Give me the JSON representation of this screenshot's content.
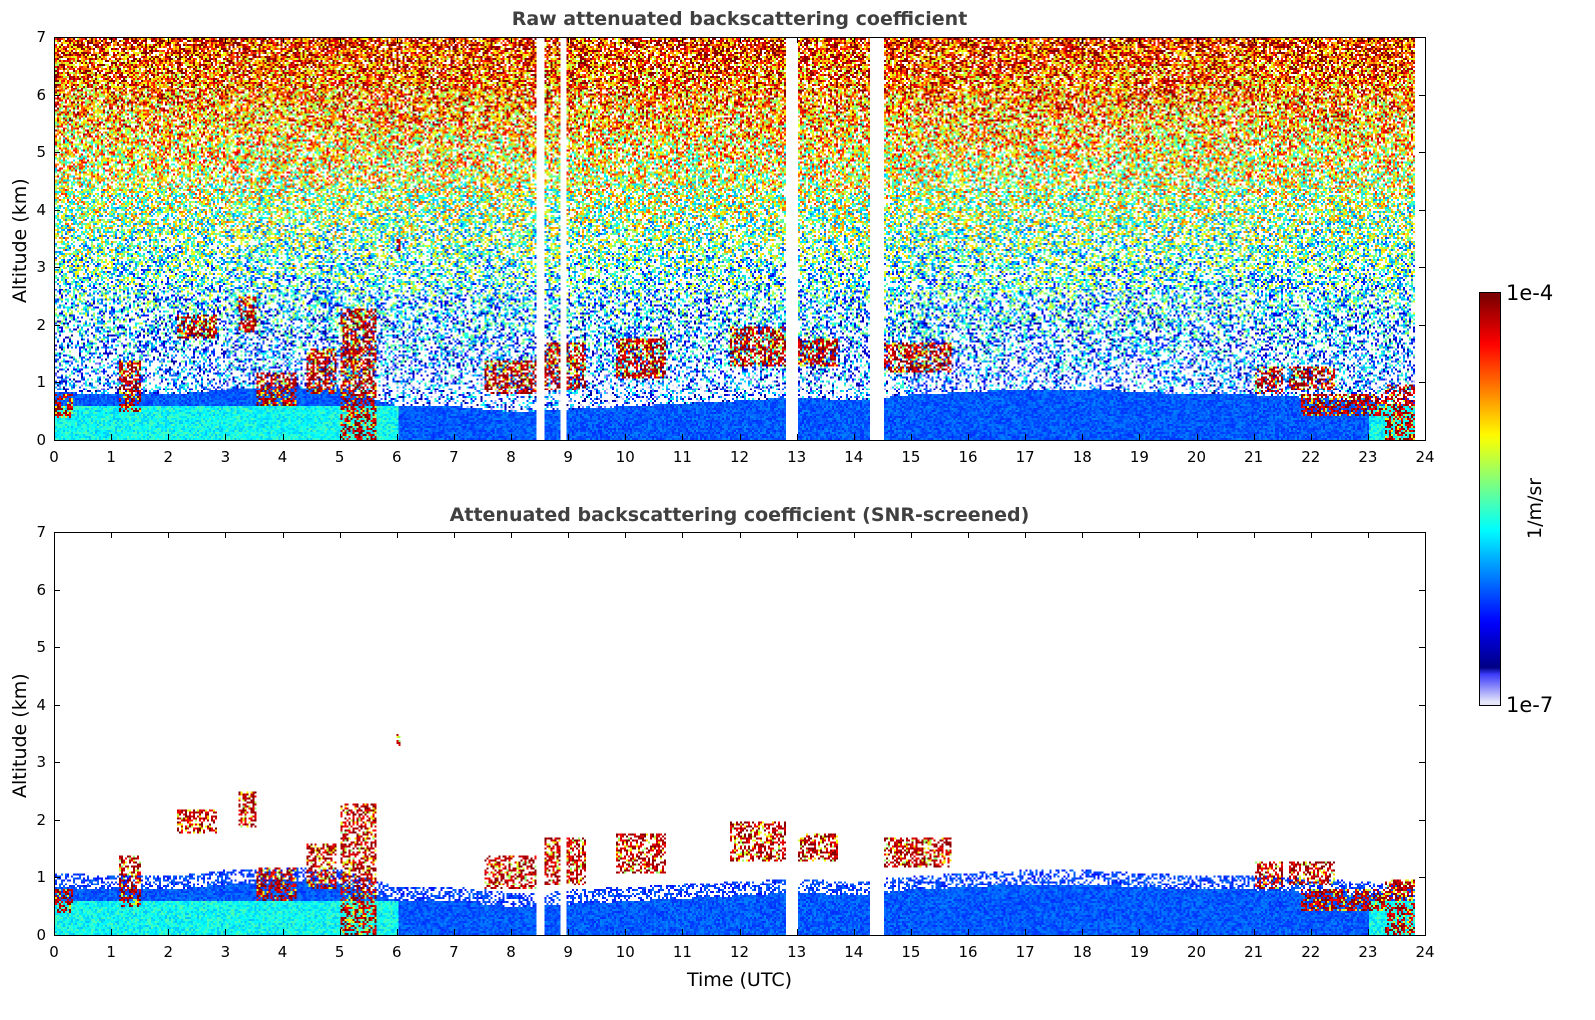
{
  "chart_data": [
    {
      "type": "heatmap",
      "title": "Raw attenuated backscattering coefficient",
      "xlabel": "",
      "ylabel": "Altitude (km)",
      "xlim": [
        0,
        24
      ],
      "ylim": [
        0,
        7
      ],
      "xticks": [
        "0",
        "1",
        "2",
        "3",
        "4",
        "5",
        "6",
        "7",
        "8",
        "9",
        "10",
        "11",
        "12",
        "13",
        "14",
        "15",
        "16",
        "17",
        "18",
        "19",
        "20",
        "21",
        "22",
        "23",
        "24"
      ],
      "yticks": [
        "0",
        "1",
        "2",
        "3",
        "4",
        "5",
        "6",
        "7"
      ],
      "screened": false
    },
    {
      "type": "heatmap",
      "title": "Attenuated backscattering coefficient (SNR-screened)",
      "xlabel": "Time (UTC)",
      "ylabel": "Altitude (km)",
      "xlim": [
        0,
        24
      ],
      "ylim": [
        0,
        7
      ],
      "xticks": [
        "0",
        "1",
        "2",
        "3",
        "4",
        "5",
        "6",
        "7",
        "8",
        "9",
        "10",
        "11",
        "12",
        "13",
        "14",
        "15",
        "16",
        "17",
        "18",
        "19",
        "20",
        "21",
        "22",
        "23",
        "24"
      ],
      "yticks": [
        "0",
        "1",
        "2",
        "3",
        "4",
        "5",
        "6",
        "7"
      ],
      "screened": true
    }
  ],
  "colorbar": {
    "min_label": "1e-7",
    "max_label": "1e-4",
    "label": "1/m/sr",
    "log_min": -7,
    "log_max": -4
  },
  "boundary_layer_km": [
    [
      0,
      0.85
    ],
    [
      1,
      0.8
    ],
    [
      2,
      0.8
    ],
    [
      3,
      0.9
    ],
    [
      4,
      0.95
    ],
    [
      5,
      0.9
    ],
    [
      6,
      0.6
    ],
    [
      7,
      0.6
    ],
    [
      8,
      0.5
    ],
    [
      9,
      0.55
    ],
    [
      10,
      0.6
    ],
    [
      11,
      0.65
    ],
    [
      12,
      0.7
    ],
    [
      13,
      0.75
    ],
    [
      14,
      0.7
    ],
    [
      15,
      0.8
    ],
    [
      16,
      0.85
    ],
    [
      17,
      0.9
    ],
    [
      18,
      0.9
    ],
    [
      19,
      0.85
    ],
    [
      20,
      0.8
    ],
    [
      21,
      0.8
    ],
    [
      22,
      0.75
    ],
    [
      23,
      0.7
    ],
    [
      23.8,
      0.6
    ]
  ],
  "cloud_layers": [
    {
      "t": [
        0,
        0.3
      ],
      "z": [
        0.4,
        0.8
      ]
    },
    {
      "t": [
        1.1,
        1.5
      ],
      "z": [
        0.5,
        1.4
      ]
    },
    {
      "t": [
        2.1,
        2.8
      ],
      "z": [
        1.8,
        2.2
      ]
    },
    {
      "t": [
        3.2,
        3.5
      ],
      "z": [
        1.9,
        2.5
      ]
    },
    {
      "t": [
        3.5,
        4.2
      ],
      "z": [
        0.6,
        1.2
      ]
    },
    {
      "t": [
        4.4,
        4.9
      ],
      "z": [
        0.8,
        1.6
      ]
    },
    {
      "t": [
        5.0,
        5.6
      ],
      "z": [
        0,
        2.3
      ]
    },
    {
      "t": [
        5.95,
        6.05
      ],
      "z": [
        3.3,
        3.5
      ]
    },
    {
      "t": [
        7.5,
        8.4
      ],
      "z": [
        0.8,
        1.4
      ]
    },
    {
      "t": [
        8.5,
        9.3
      ],
      "z": [
        0.9,
        1.7
      ]
    },
    {
      "t": [
        9.8,
        10.7
      ],
      "z": [
        1.1,
        1.8
      ]
    },
    {
      "t": [
        11.8,
        12.9
      ],
      "z": [
        1.3,
        2.0
      ]
    },
    {
      "t": [
        13.0,
        13.7
      ],
      "z": [
        1.3,
        1.8
      ]
    },
    {
      "t": [
        14.5,
        15.7
      ],
      "z": [
        1.2,
        1.7
      ]
    },
    {
      "t": [
        21.0,
        21.5
      ],
      "z": [
        0.8,
        1.3
      ]
    },
    {
      "t": [
        21.6,
        22.4
      ],
      "z": [
        0.9,
        1.3
      ]
    },
    {
      "t": [
        21.8,
        23.4
      ],
      "z": [
        0.45,
        0.8
      ]
    },
    {
      "t": [
        23.3,
        23.8
      ],
      "z": [
        0,
        1.0
      ]
    }
  ],
  "data_gaps_utc": [
    [
      8.4,
      8.55
    ],
    [
      8.85,
      8.95
    ],
    [
      12.8,
      13.0
    ],
    [
      14.25,
      14.5
    ]
  ]
}
